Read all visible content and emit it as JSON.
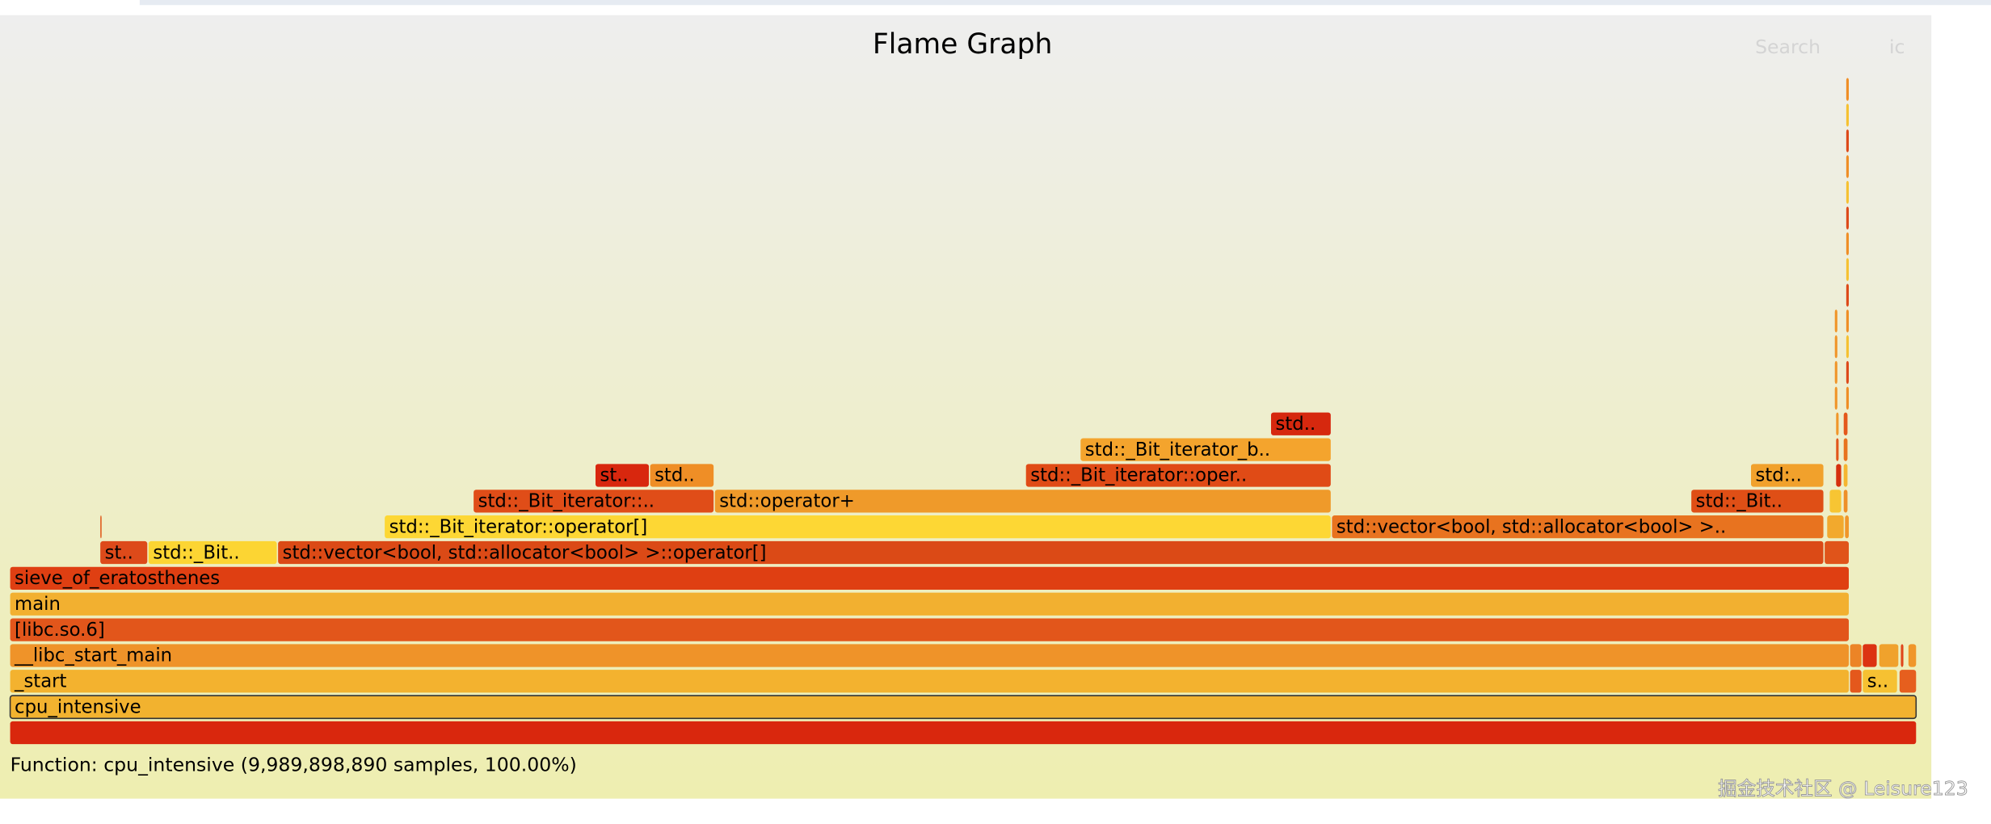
{
  "header": {
    "title": "Flame Graph",
    "search": "Search",
    "ic": "ic"
  },
  "frames": [
    {
      "label": "cpu_intensive"
    },
    {
      "label": "_start"
    },
    {
      "label": "s.."
    },
    {
      "label": "__libc_start_main"
    },
    {
      "label": "[libc.so.6]"
    },
    {
      "label": "main"
    },
    {
      "label": "sieve_of_eratosthenes"
    },
    {
      "label": "st.."
    },
    {
      "label": "std::_Bit.."
    },
    {
      "label": "std::vector<bool, std::allocator<bool> >::operator[]"
    },
    {
      "label": "std::_Bit_iterator::operator[]"
    },
    {
      "label": "std::vector<bool, std::allocator<bool> >.."
    },
    {
      "label": "std::_Bit_iterator::.."
    },
    {
      "label": "std::operator+"
    },
    {
      "label": "std::_Bit.."
    },
    {
      "label": "st.."
    },
    {
      "label": "std.."
    },
    {
      "label": "std::_Bit_iterator::oper.."
    },
    {
      "label": "std:.."
    },
    {
      "label": "std::_Bit_iterator_b.."
    },
    {
      "label": "std.."
    }
  ],
  "status": "Function: cpu_intensive (9,989,898,890 samples, 100.00%)",
  "watermark": "掘金技术社区 @ Leisure123"
}
